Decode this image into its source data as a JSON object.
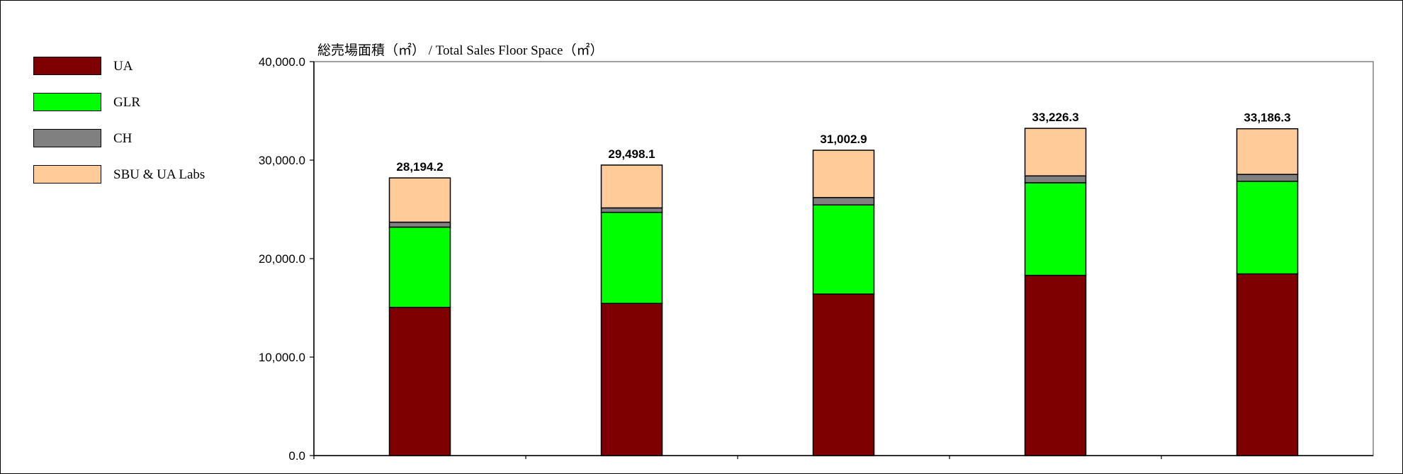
{
  "chart_data": {
    "type": "bar",
    "stacked": true,
    "title": "総売場面積（㎡） / Total Sales Floor Space（㎡）",
    "xlabel": "",
    "ylabel": "",
    "ylim": [
      0,
      40000
    ],
    "yticks": [
      "0.0",
      "10,000.0",
      "20,000.0",
      "30,000.0",
      "40,000.0"
    ],
    "ytick_values": [
      0,
      10000,
      20000,
      30000,
      40000
    ],
    "grid": false,
    "legend_position": "left",
    "categories": [
      "",
      "",
      "",
      "",
      ""
    ],
    "series": [
      {
        "name": "UA",
        "color": "#7f0000",
        "values": [
          15050,
          15450,
          16400,
          18300,
          18450
        ]
      },
      {
        "name": "GLR",
        "color": "#00ff00",
        "values": [
          8150,
          9250,
          9050,
          9400,
          9400
        ]
      },
      {
        "name": "CH",
        "color": "#808080",
        "values": [
          500,
          450,
          750,
          700,
          700
        ]
      },
      {
        "name": "SBU & UA Labs",
        "color": "#ffcc99",
        "values": [
          4494.2,
          4348.1,
          4802.9,
          4826.3,
          4636.3
        ]
      }
    ],
    "totals": [
      "28,194.2",
      "29,498.1",
      "31,002.9",
      "33,226.3",
      "33,186.3"
    ]
  }
}
